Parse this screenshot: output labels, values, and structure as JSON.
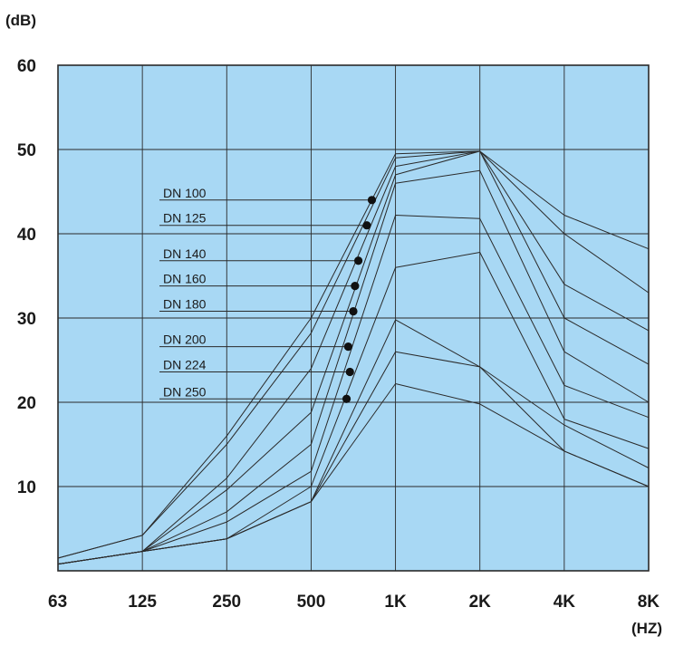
{
  "chart_data": {
    "type": "line",
    "title": "",
    "ylabel": "(dB)",
    "xlabel": "(HZ)",
    "ylim": [
      0,
      60
    ],
    "x_categories": [
      "63",
      "125",
      "250",
      "500",
      "1K",
      "2K",
      "4K",
      "8K"
    ],
    "y_ticks": [
      {
        "value": 60,
        "label": "60"
      },
      {
        "value": 50,
        "label": "50"
      },
      {
        "value": 40,
        "label": "40"
      },
      {
        "value": 30,
        "label": "30"
      },
      {
        "value": 20,
        "label": "20"
      },
      {
        "value": 10,
        "label": "10"
      }
    ],
    "grid": true,
    "colors": {
      "plot_background": "#a8d8f4",
      "grid": "#2a2a2a",
      "line": "#2a2a2a",
      "marker": "#111111"
    },
    "series": [
      {
        "name": "DN 100",
        "values": [
          1.5,
          4.2,
          16.0,
          30.0,
          49.5,
          49.8,
          42.2,
          38.2
        ],
        "marker": {
          "x": 3.72,
          "y": 44.0
        }
      },
      {
        "name": "DN 125",
        "values": [
          1.5,
          4.2,
          15.0,
          28.2,
          49.0,
          49.8,
          40.0,
          33.0
        ],
        "marker": {
          "x": 3.66,
          "y": 41.0
        }
      },
      {
        "name": "DN 140",
        "values": [
          0.8,
          2.3,
          11.0,
          24.0,
          48.0,
          49.8,
          34.0,
          28.5
        ],
        "marker": {
          "x": 3.56,
          "y": 36.8
        }
      },
      {
        "name": "DN 160",
        "values": [
          0.8,
          2.3,
          9.6,
          18.8,
          47.0,
          49.8,
          30.0,
          24.5
        ],
        "marker": {
          "x": 3.52,
          "y": 33.8
        }
      },
      {
        "name": "DN 180",
        "values": [
          0.8,
          2.3,
          7.0,
          15.0,
          46.0,
          47.5,
          26.0,
          20.0
        ],
        "marker": {
          "x": 3.5,
          "y": 30.8
        }
      },
      {
        "name": "DN 200",
        "values": [
          0.8,
          2.3,
          5.8,
          11.8,
          42.2,
          41.8,
          22.0,
          18.2
        ],
        "marker": {
          "x": 3.44,
          "y": 26.6
        }
      },
      {
        "name": "DN 224",
        "values": [
          0.8,
          2.3,
          3.8,
          10.0,
          36.0,
          37.8,
          18.0,
          14.5
        ],
        "marker": {
          "x": 3.46,
          "y": 23.6
        }
      },
      {
        "name": "DN 250",
        "values": [
          0.8,
          2.3,
          3.8,
          8.2,
          29.8,
          24.2,
          17.3,
          12.2
        ],
        "marker": {
          "x": 3.42,
          "y": 20.4
        }
      },
      {
        "name": "",
        "values": [
          0.8,
          2.3,
          3.8,
          8.2,
          26.0,
          24.2,
          14.2,
          10.0
        ]
      },
      {
        "name": "",
        "values": [
          0.8,
          2.3,
          3.8,
          8.2,
          22.2,
          19.8,
          14.2,
          10.0
        ]
      }
    ]
  }
}
